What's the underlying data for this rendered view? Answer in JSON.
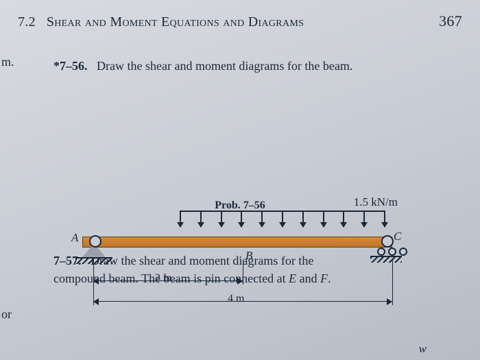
{
  "header": {
    "section_number": "7.2",
    "section_title": "Shear and Moment Equations and Diagrams",
    "page_number": "367"
  },
  "margin_note_top": "m.",
  "problem_56": {
    "number": "*7–56.",
    "statement": "Draw the shear and moment diagrams for the beam.",
    "load_label": "1.5 kN/m",
    "point_A": "A",
    "point_B": "B",
    "point_C": "C",
    "dim_AB": "2 m",
    "dim_AC": "4 m",
    "caption": "Prob. 7–56",
    "dimensions": {
      "span_AB_m": 2,
      "span_AC_m": 4
    },
    "load": {
      "type": "uniform",
      "magnitude_kN_per_m": 1.5,
      "from": "B",
      "to": "C"
    },
    "supports": {
      "A": "pin",
      "C": "roller"
    },
    "colors": {
      "beam_fill": "#d28a3a",
      "beam_edge": "#5a4220",
      "ink": "#1a2838",
      "page_bg": "#c8ccd4"
    }
  },
  "problem_57": {
    "number": "7–57.",
    "statement_line1": "Draw the shear and moment diagrams for the",
    "statement_line2": "compound beam. The beam is pin connected at ",
    "em_E": "E",
    "and_text": " and ",
    "em_F": "F",
    "period": "."
  },
  "margin_note_bottom": "or",
  "w_symbol": "w"
}
